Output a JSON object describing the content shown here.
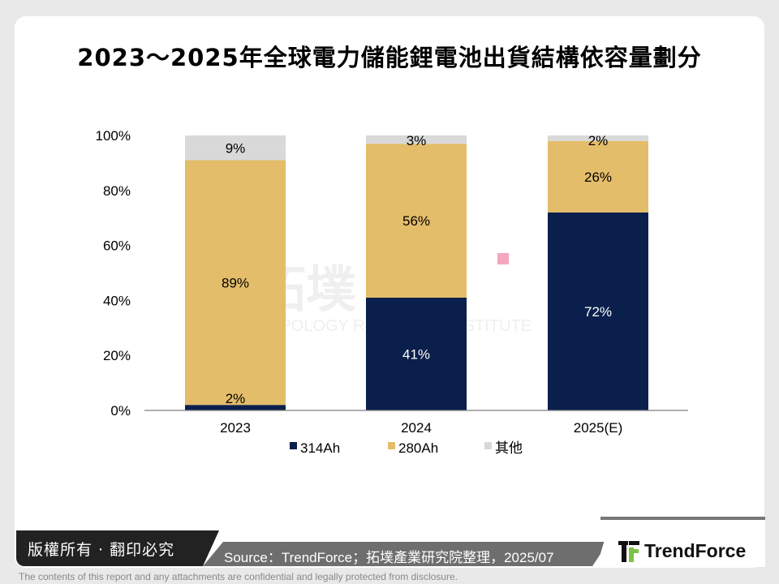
{
  "title": "2023～2025年全球電力儲能鋰電池出貨結構依容量劃分",
  "watermark": {
    "logo_text": "拓墣",
    "subtitle": "TOPOLOGY RESEARCH INSTITUTE"
  },
  "chart_data": {
    "type": "bar",
    "stacked": true,
    "categories": [
      "2023",
      "2024",
      "2025(E)"
    ],
    "series": [
      {
        "name": "314Ah",
        "values": [
          2,
          41,
          72
        ],
        "labels": [
          "2%",
          "41%",
          "72%"
        ],
        "color": "#0a1f4b",
        "label_color": "#000000"
      },
      {
        "name": "280Ah",
        "values": [
          89,
          56,
          26
        ],
        "labels": [
          "89%",
          "56%",
          "26%"
        ],
        "color": "#e4bd6a",
        "label_color": "#000000"
      },
      {
        "name": "其他",
        "values": [
          9,
          3,
          2
        ],
        "labels": [
          "9%",
          "3%",
          "2%"
        ],
        "color": "#d9d9d9",
        "label_color": "#000000"
      }
    ],
    "ylim": [
      0,
      100
    ],
    "yticks": [
      "0%",
      "20%",
      "40%",
      "60%",
      "80%",
      "100%"
    ],
    "grid": false,
    "legend_position": "bottom"
  },
  "footer": {
    "copyright": "版權所有 · 翻印必究",
    "source": "Source：TrendForce；拓墣產業研究院整理，2025/07",
    "brand": "TrendForce",
    "disclaimer": "The contents of this report and any attachments are confidential and legally protected from disclosure."
  }
}
